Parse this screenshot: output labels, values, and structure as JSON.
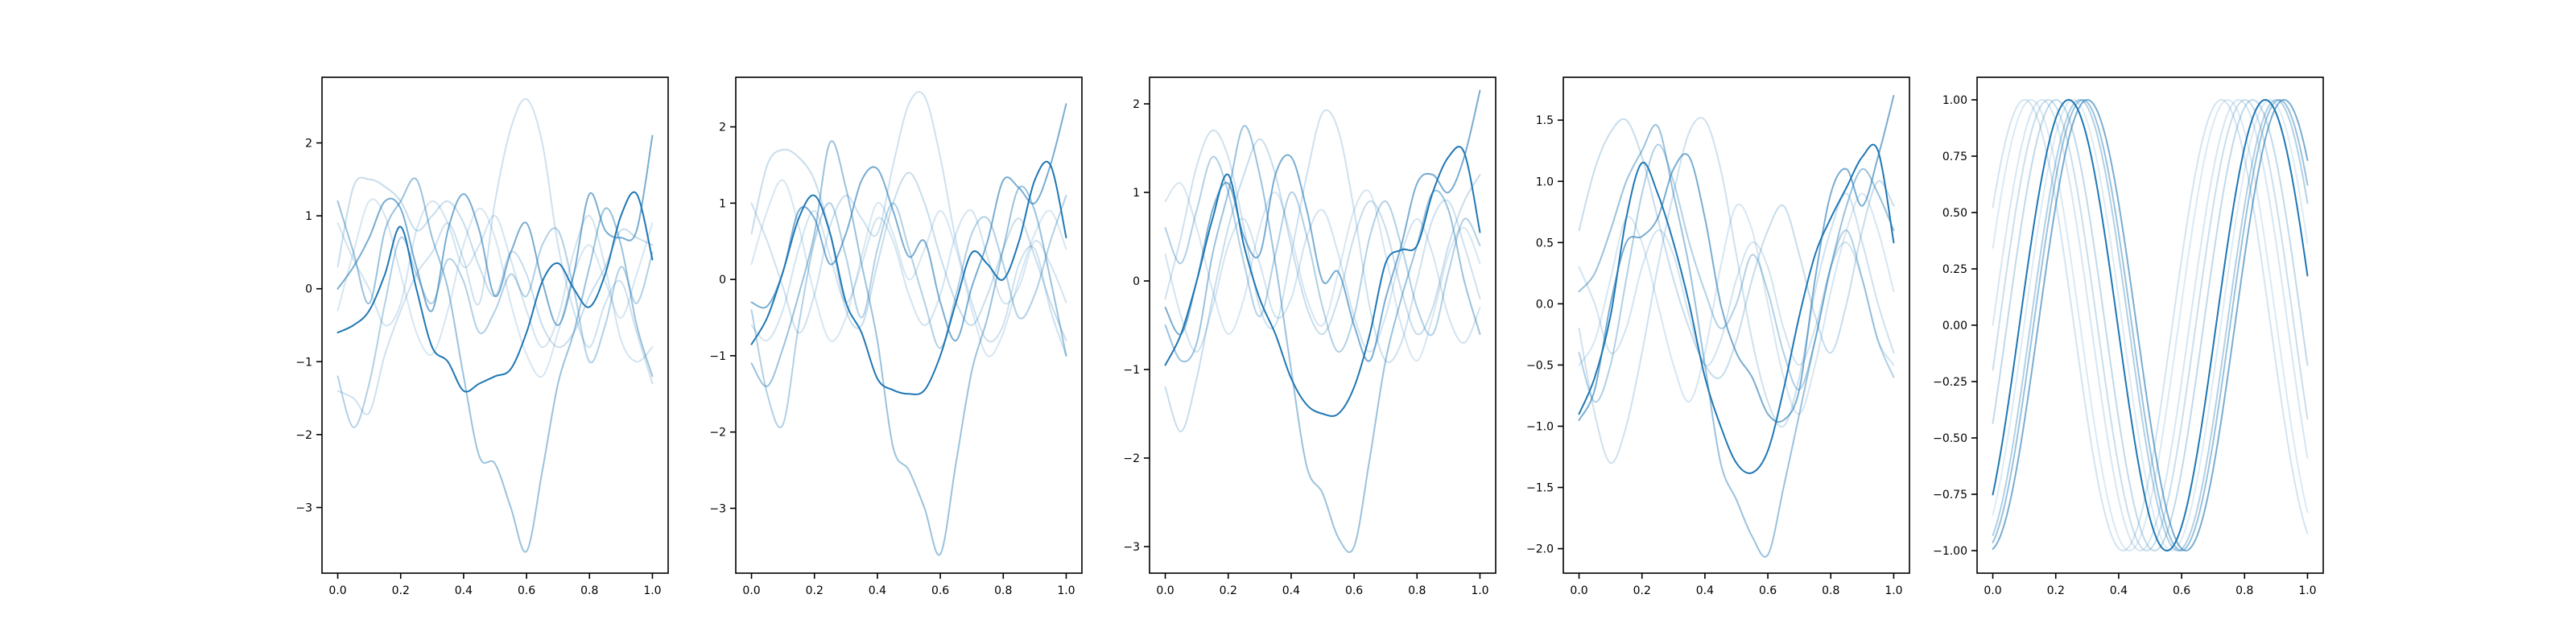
{
  "colors": {
    "series": "#1f77b4",
    "frame": "#000000",
    "background": "#ffffff"
  },
  "chart_data": [
    {
      "type": "line",
      "title": "",
      "xlabel": "",
      "ylabel": "",
      "xlim": [
        -0.05,
        1.05
      ],
      "ylim": [
        -3.9,
        2.9
      ],
      "xticks": [
        "0.0",
        "0.2",
        "0.4",
        "0.6",
        "0.8",
        "1.0"
      ],
      "yticks": [
        "−3",
        "−2",
        "−1",
        "0",
        "1",
        "2"
      ],
      "grid": false,
      "x": [
        0.0,
        0.05,
        0.1,
        0.15,
        0.2,
        0.25,
        0.3,
        0.35,
        0.4,
        0.45,
        0.5,
        0.55,
        0.6,
        0.65,
        0.7,
        0.75,
        0.8,
        0.85,
        0.9,
        0.95,
        1.0
      ],
      "series": [
        {
          "opacity": 1.0,
          "values": [
            -0.6,
            -0.5,
            -0.3,
            0.2,
            0.85,
            0.0,
            -0.8,
            -1.0,
            -1.4,
            -1.3,
            -1.2,
            -1.1,
            -0.6,
            0.1,
            0.35,
            0.0,
            -0.25,
            0.2,
            1.0,
            1.3,
            0.4
          ]
        },
        {
          "opacity": 0.6,
          "values": [
            0.0,
            0.3,
            0.7,
            1.2,
            1.1,
            0.3,
            -0.3,
            0.8,
            1.3,
            0.8,
            -0.1,
            0.5,
            0.9,
            0.1,
            -0.5,
            0.2,
            1.3,
            0.8,
            0.7,
            0.8,
            2.1
          ]
        },
        {
          "opacity": 0.45,
          "values": [
            1.2,
            0.5,
            -0.2,
            0.8,
            1.2,
            1.5,
            0.7,
            0.0,
            -1.2,
            -2.3,
            -2.4,
            -3.0,
            -3.6,
            -2.5,
            -1.3,
            -0.6,
            0.3,
            1.1,
            0.6,
            -0.5,
            -1.2
          ]
        },
        {
          "opacity": 0.35,
          "values": [
            -1.2,
            -1.9,
            -1.3,
            -0.2,
            0.7,
            0.2,
            -0.2,
            0.4,
            0.1,
            -0.6,
            -0.3,
            0.2,
            -0.1,
            0.6,
            0.8,
            0.0,
            -1.0,
            -0.5,
            0.3,
            -0.2,
            0.5
          ]
        },
        {
          "opacity": 0.25,
          "values": [
            0.3,
            1.4,
            1.5,
            1.4,
            1.2,
            0.8,
            1.0,
            1.2,
            0.9,
            0.3,
            -0.1,
            0.5,
            0.2,
            -0.5,
            -0.8,
            -0.6,
            -0.1,
            0.3,
            0.8,
            0.7,
            0.6
          ]
        },
        {
          "opacity": 0.22,
          "values": [
            -1.4,
            -1.5,
            -1.7,
            -0.9,
            -0.3,
            0.2,
            0.5,
            0.9,
            0.4,
            -0.2,
            1.2,
            2.2,
            2.6,
            2.0,
            0.6,
            -0.3,
            -0.8,
            -0.2,
            0.1,
            -0.6,
            -1.3
          ]
        },
        {
          "opacity": 0.2,
          "values": [
            0.9,
            0.4,
            0.0,
            -0.5,
            -0.2,
            0.8,
            1.2,
            0.9,
            0.3,
            0.6,
            1.0,
            0.4,
            -0.3,
            -0.8,
            -0.4,
            0.5,
            1.0,
            0.3,
            -0.7,
            -1.0,
            -0.8
          ]
        },
        {
          "opacity": 0.18,
          "values": [
            -0.3,
            0.5,
            1.2,
            1.0,
            0.2,
            -0.6,
            -0.9,
            -0.3,
            0.6,
            1.1,
            0.7,
            -0.2,
            -0.9,
            -1.2,
            -0.6,
            0.2,
            0.6,
            0.1,
            -0.4,
            0.2,
            0.9
          ]
        }
      ]
    },
    {
      "type": "line",
      "title": "",
      "xlabel": "",
      "ylabel": "",
      "xlim": [
        -0.05,
        1.05
      ],
      "ylim": [
        -3.85,
        2.65
      ],
      "xticks": [
        "0.0",
        "0.2",
        "0.4",
        "0.6",
        "0.8",
        "1.0"
      ],
      "yticks": [
        "−3",
        "−2",
        "−1",
        "0",
        "1",
        "2"
      ],
      "grid": false,
      "x": [
        0.0,
        0.05,
        0.1,
        0.15,
        0.2,
        0.25,
        0.3,
        0.35,
        0.4,
        0.45,
        0.5,
        0.55,
        0.6,
        0.65,
        0.7,
        0.75,
        0.8,
        0.85,
        0.9,
        0.95,
        1.0
      ],
      "series": [
        {
          "opacity": 1.0,
          "values": [
            -0.85,
            -0.5,
            0.1,
            0.8,
            1.1,
            0.6,
            -0.3,
            -0.7,
            -1.3,
            -1.45,
            -1.5,
            -1.45,
            -1.0,
            -0.3,
            0.35,
            0.2,
            0.0,
            0.5,
            1.3,
            1.5,
            0.55
          ]
        },
        {
          "opacity": 0.6,
          "values": [
            -0.3,
            -0.35,
            0.1,
            0.9,
            0.8,
            0.2,
            0.6,
            1.3,
            1.45,
            0.9,
            0.3,
            0.5,
            -0.3,
            -0.8,
            -0.1,
            0.5,
            1.3,
            1.2,
            1.0,
            1.5,
            2.3
          ]
        },
        {
          "opacity": 0.45,
          "values": [
            -1.1,
            -1.4,
            -0.9,
            -0.2,
            0.6,
            1.8,
            1.2,
            0.2,
            -0.8,
            -2.2,
            -2.5,
            -3.0,
            -3.6,
            -2.4,
            -1.2,
            -0.5,
            0.4,
            1.2,
            0.9,
            0.0,
            -1.0
          ]
        },
        {
          "opacity": 0.35,
          "values": [
            -0.4,
            -1.5,
            -1.9,
            -0.6,
            0.5,
            1.0,
            0.3,
            -0.5,
            0.4,
            1.0,
            0.4,
            -0.3,
            -0.9,
            -0.2,
            0.6,
            0.8,
            0.2,
            -0.5,
            -0.2,
            0.5,
            1.1
          ]
        },
        {
          "opacity": 0.25,
          "values": [
            0.6,
            1.5,
            1.7,
            1.6,
            1.3,
            0.6,
            -0.4,
            -0.6,
            0.2,
            1.0,
            1.4,
            1.0,
            0.3,
            -0.3,
            -0.6,
            -0.2,
            0.4,
            0.8,
            0.3,
            -0.3,
            -0.8
          ]
        },
        {
          "opacity": 0.22,
          "values": [
            1.0,
            0.5,
            -0.1,
            -0.7,
            -0.2,
            0.7,
            1.1,
            0.8,
            0.6,
            1.5,
            2.3,
            2.4,
            1.6,
            0.5,
            -0.3,
            -0.8,
            -0.6,
            0.2,
            0.4,
            -0.4,
            -1.0
          ]
        },
        {
          "opacity": 0.2,
          "values": [
            -0.6,
            -0.8,
            -0.4,
            0.4,
            0.9,
            0.3,
            -0.3,
            0.2,
            0.8,
            0.5,
            -0.2,
            -0.6,
            -0.2,
            0.6,
            0.9,
            0.3,
            -0.3,
            -0.1,
            0.5,
            0.2,
            -0.3
          ]
        },
        {
          "opacity": 0.18,
          "values": [
            0.2,
            0.9,
            1.3,
            0.7,
            -0.2,
            -0.8,
            -0.5,
            0.3,
            1.0,
            0.6,
            0.0,
            0.4,
            0.9,
            0.4,
            -0.4,
            -1.0,
            -0.7,
            0.0,
            0.6,
            0.9,
            0.4
          ]
        }
      ]
    },
    {
      "type": "line",
      "title": "",
      "xlabel": "",
      "ylabel": "",
      "xlim": [
        -0.05,
        1.05
      ],
      "ylim": [
        -3.3,
        2.3
      ],
      "xticks": [
        "0.0",
        "0.2",
        "0.4",
        "0.6",
        "0.8",
        "1.0"
      ],
      "yticks": [
        "−3",
        "−2",
        "−1",
        "0",
        "1",
        "2"
      ],
      "grid": false,
      "x": [
        0.0,
        0.05,
        0.1,
        0.15,
        0.2,
        0.25,
        0.3,
        0.35,
        0.4,
        0.45,
        0.5,
        0.55,
        0.6,
        0.65,
        0.7,
        0.75,
        0.8,
        0.85,
        0.9,
        0.95,
        1.0
      ],
      "series": [
        {
          "opacity": 1.0,
          "values": [
            -0.95,
            -0.6,
            0.0,
            0.7,
            1.2,
            0.4,
            -0.2,
            -0.6,
            -1.1,
            -1.4,
            -1.5,
            -1.5,
            -1.2,
            -0.6,
            0.2,
            0.35,
            0.4,
            1.0,
            1.4,
            1.45,
            0.55
          ]
        },
        {
          "opacity": 0.6,
          "values": [
            -0.3,
            -0.6,
            0.0,
            0.8,
            1.1,
            0.5,
            0.3,
            1.2,
            1.4,
            0.8,
            0.0,
            0.1,
            -0.5,
            -0.9,
            -0.2,
            0.4,
            1.1,
            1.2,
            1.0,
            1.4,
            2.15
          ]
        },
        {
          "opacity": 0.45,
          "values": [
            -0.5,
            -0.9,
            -0.7,
            0.3,
            1.0,
            1.75,
            1.2,
            0.2,
            -1.0,
            -2.1,
            -2.4,
            -2.9,
            -3.0,
            -2.0,
            -0.9,
            -0.2,
            0.4,
            1.0,
            0.8,
            0.0,
            -0.6
          ]
        },
        {
          "opacity": 0.35,
          "values": [
            0.6,
            0.2,
            0.8,
            1.4,
            1.0,
            0.2,
            -0.4,
            0.3,
            1.0,
            0.5,
            -0.3,
            -0.8,
            -0.4,
            0.5,
            0.9,
            0.4,
            -0.3,
            -0.6,
            0.1,
            0.7,
            0.4
          ]
        },
        {
          "opacity": 0.25,
          "values": [
            -1.2,
            -1.7,
            -1.1,
            -0.2,
            0.6,
            1.2,
            1.6,
            1.2,
            0.4,
            -0.3,
            -0.6,
            -0.2,
            0.5,
            0.9,
            0.6,
            -0.1,
            -0.6,
            -0.3,
            0.4,
            0.9,
            1.2
          ]
        },
        {
          "opacity": 0.22,
          "values": [
            -0.2,
            0.5,
            1.3,
            1.7,
            1.4,
            0.6,
            -0.3,
            -0.5,
            0.3,
            1.2,
            1.9,
            1.7,
            0.8,
            -0.3,
            -0.9,
            -0.7,
            0.0,
            0.7,
            0.9,
            0.4,
            -0.2
          ]
        },
        {
          "opacity": 0.2,
          "values": [
            0.3,
            -0.4,
            -0.8,
            -0.3,
            0.4,
            0.7,
            0.2,
            -0.4,
            -0.2,
            0.5,
            0.8,
            0.3,
            -0.4,
            -0.8,
            -0.4,
            0.3,
            0.7,
            0.3,
            -0.4,
            -0.7,
            -0.3
          ]
        },
        {
          "opacity": 0.18,
          "values": [
            0.9,
            1.1,
            0.6,
            -0.1,
            -0.6,
            -0.2,
            0.6,
            1.0,
            0.5,
            -0.2,
            -0.5,
            0.1,
            0.8,
            1.0,
            0.3,
            -0.5,
            -0.9,
            -0.4,
            0.3,
            0.6,
            0.2
          ]
        }
      ]
    },
    {
      "type": "line",
      "title": "",
      "xlabel": "",
      "ylabel": "",
      "xlim": [
        -0.05,
        1.05
      ],
      "ylim": [
        -2.2,
        1.85
      ],
      "xticks": [
        "0.0",
        "0.2",
        "0.4",
        "0.6",
        "0.8",
        "1.0"
      ],
      "yticks": [
        "−2.0",
        "−1.5",
        "−1.0",
        "−0.5",
        "0.0",
        "0.5",
        "1.0",
        "1.5"
      ],
      "grid": false,
      "x": [
        0.0,
        0.05,
        0.1,
        0.15,
        0.2,
        0.25,
        0.3,
        0.35,
        0.4,
        0.45,
        0.5,
        0.55,
        0.6,
        0.65,
        0.7,
        0.75,
        0.8,
        0.85,
        0.9,
        0.95,
        1.0
      ],
      "series": [
        {
          "opacity": 1.0,
          "values": [
            -0.9,
            -0.6,
            -0.1,
            0.7,
            1.15,
            0.9,
            0.5,
            0.0,
            -0.6,
            -1.0,
            -1.3,
            -1.38,
            -1.2,
            -0.7,
            -0.1,
            0.4,
            0.7,
            0.95,
            1.2,
            1.25,
            0.5
          ]
        },
        {
          "opacity": 0.6,
          "values": [
            -0.95,
            -0.7,
            0.0,
            0.5,
            0.55,
            0.7,
            1.1,
            1.2,
            0.7,
            0.0,
            -0.4,
            -0.6,
            -0.9,
            -0.95,
            -0.7,
            0.2,
            0.9,
            1.1,
            0.8,
            1.2,
            1.7
          ]
        },
        {
          "opacity": 0.45,
          "values": [
            0.1,
            0.25,
            0.6,
            1.0,
            1.25,
            1.45,
            0.9,
            0.3,
            -0.5,
            -1.3,
            -1.6,
            -1.9,
            -2.05,
            -1.5,
            -0.9,
            -0.3,
            0.3,
            0.8,
            1.1,
            0.9,
            0.6
          ]
        },
        {
          "opacity": 0.35,
          "values": [
            -0.4,
            -0.8,
            -0.5,
            0.2,
            0.9,
            1.3,
            1.0,
            0.5,
            0.1,
            -0.2,
            0.0,
            0.4,
            0.1,
            -0.4,
            -0.7,
            -0.3,
            0.3,
            0.6,
            0.2,
            -0.3,
            -0.6
          ]
        },
        {
          "opacity": 0.25,
          "values": [
            0.6,
            1.1,
            1.4,
            1.5,
            1.2,
            0.7,
            0.2,
            -0.2,
            -0.5,
            -0.6,
            -0.3,
            0.2,
            0.6,
            0.8,
            0.4,
            -0.1,
            -0.4,
            0.0,
            0.6,
            1.0,
            0.8
          ]
        },
        {
          "opacity": 0.22,
          "values": [
            -0.2,
            -0.9,
            -1.3,
            -1.0,
            -0.4,
            0.3,
            0.9,
            1.4,
            1.5,
            1.1,
            0.4,
            -0.3,
            -0.8,
            -1.0,
            -0.6,
            0.1,
            0.6,
            0.9,
            0.5,
            0.0,
            -0.4
          ]
        },
        {
          "opacity": 0.2,
          "values": [
            0.3,
            0.0,
            -0.4,
            -0.2,
            0.3,
            0.6,
            0.4,
            -0.1,
            -0.5,
            -0.3,
            0.2,
            0.5,
            0.3,
            -0.2,
            -0.5,
            -0.2,
            0.3,
            0.5,
            0.2,
            -0.3,
            -0.5
          ]
        },
        {
          "opacity": 0.18,
          "values": [
            -0.5,
            -0.3,
            0.2,
            0.7,
            0.5,
            0.0,
            -0.5,
            -0.8,
            -0.4,
            0.3,
            0.8,
            0.6,
            0.0,
            -0.6,
            -0.9,
            -0.5,
            0.1,
            0.6,
            0.9,
            0.6,
            0.1
          ]
        }
      ]
    },
    {
      "type": "line",
      "title": "",
      "xlabel": "",
      "ylabel": "",
      "xlim": [
        -0.05,
        1.05
      ],
      "ylim": [
        -1.1,
        1.1
      ],
      "xticks": [
        "0.0",
        "0.2",
        "0.4",
        "0.6",
        "0.8",
        "1.0"
      ],
      "yticks": [
        "−1.00",
        "−0.75",
        "−0.50",
        "−0.25",
        "0.00",
        "0.25",
        "0.50",
        "0.75",
        "1.00"
      ],
      "grid": false,
      "curve": "sine",
      "series": [
        {
          "opacity": 1.0,
          "frequency": 1.6,
          "phase": -0.85
        },
        {
          "opacity": 0.6,
          "frequency": 1.6,
          "phase": -1.45
        },
        {
          "opacity": 0.45,
          "frequency": 1.6,
          "phase": -1.3
        },
        {
          "opacity": 0.35,
          "frequency": 1.6,
          "phase": -1.2
        },
        {
          "opacity": 0.28,
          "frequency": 1.6,
          "phase": -0.45
        },
        {
          "opacity": 0.24,
          "frequency": 1.6,
          "phase": -0.2
        },
        {
          "opacity": 0.2,
          "frequency": 1.6,
          "phase": 0.55
        },
        {
          "opacity": 0.18,
          "frequency": 1.6,
          "phase": 0.0
        },
        {
          "opacity": 0.16,
          "frequency": 1.6,
          "phase": 0.35
        },
        {
          "opacity": 0.15,
          "frequency": 1.6,
          "phase": -1.0
        }
      ]
    }
  ]
}
